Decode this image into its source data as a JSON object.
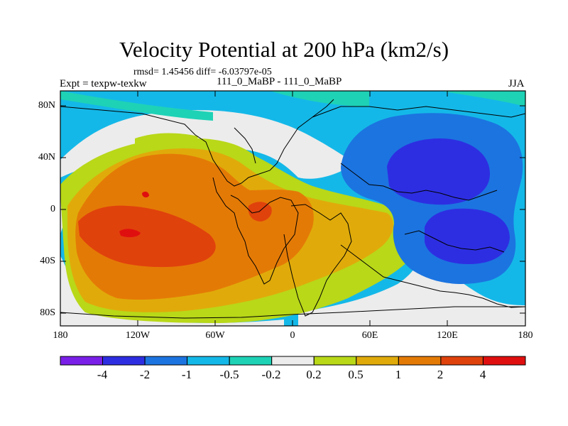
{
  "title": "Velocity Potential at 200 hPa (km2/s)",
  "stats": "rmsd= 1.45456 diff= -6.03797e-05",
  "expt": "Expt = texpw-texkw",
  "cases": "111_0_MaBP - 111_0_MaBP",
  "season": "JJA",
  "colors": {
    "lt_neg4": "#7a1fe8",
    "neg4_neg2": "#2d2ee2",
    "neg2_neg1": "#1c74e0",
    "neg1_neg05": "#14b8e8",
    "neg05_neg02": "#1ed2b6",
    "neg02_02": "#ececec",
    "p02_p05": "#b8d818",
    "p05_p1": "#e0ab0a",
    "p1_p2": "#e47a06",
    "p2_p4": "#e0420c",
    "gt_p4": "#e00f0f"
  },
  "chart_data": {
    "type": "map",
    "title": "Velocity Potential at 200 hPa (km2/s)",
    "lon_ticks": [
      "180",
      "120W",
      "60W",
      "0",
      "60E",
      "120E",
      "180"
    ],
    "lat_ticks": [
      "80N",
      "40N",
      "0",
      "40S",
      "80S"
    ],
    "colorbar_levels": [
      "-4",
      "-2",
      "-1",
      "-0.5",
      "-0.2",
      "0.2",
      "0.5",
      "1",
      "2",
      "4"
    ],
    "colorbar_bins": 11
  }
}
